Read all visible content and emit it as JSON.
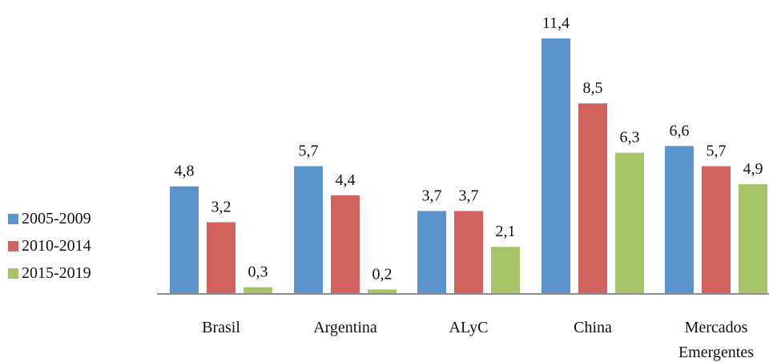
{
  "chart_data": {
    "type": "bar",
    "categories": [
      "Brasil",
      "Argentina",
      "ALyC",
      "China",
      [
        "Mercados",
        "Emergentes"
      ]
    ],
    "series": [
      {
        "name": "2005-2009",
        "color": "#5b93cc",
        "values": [
          4.8,
          5.7,
          3.7,
          11.4,
          6.6
        ],
        "labels": [
          "4,8",
          "5,7",
          "3,7",
          "11,4",
          "6,6"
        ]
      },
      {
        "name": "2010-2014",
        "color": "#d1625d",
        "values": [
          3.2,
          4.4,
          3.7,
          8.5,
          5.7
        ],
        "labels": [
          "3,2",
          "4,4",
          "3,7",
          "8,5",
          "5,7"
        ]
      },
      {
        "name": "2015-2019",
        "color": "#a6c365",
        "values": [
          0.3,
          0.2,
          2.1,
          6.3,
          4.9
        ],
        "labels": [
          "0,3",
          "0,2",
          "2,1",
          "6,3",
          "4,9"
        ]
      }
    ],
    "ylim": [
      0,
      11.4
    ],
    "legend_position": "left",
    "grid": false
  }
}
